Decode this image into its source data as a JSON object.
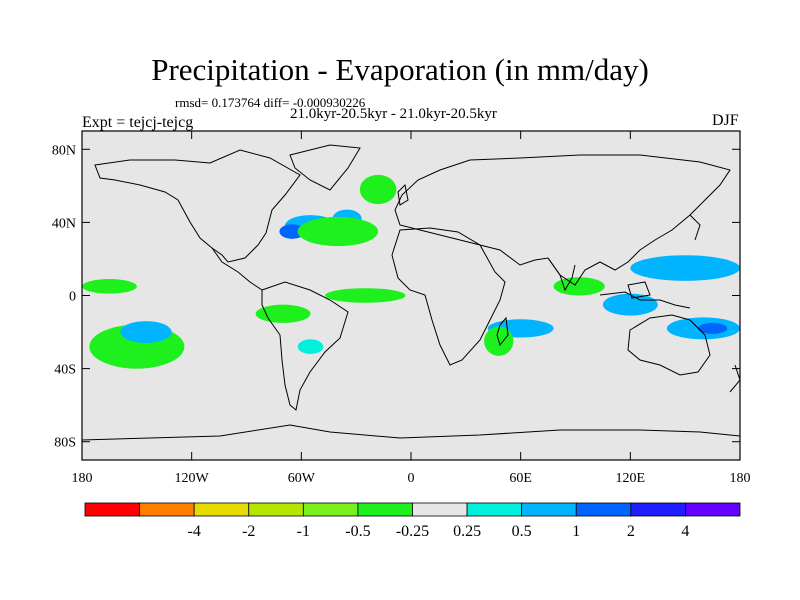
{
  "title": "Precipitation - Evaporation (in mm/day)",
  "stats_line": "rmsd= 0.173764 diff= -0.000930226",
  "subtitle": "21.0kyr-20.5kyr - 21.0kyr-20.5kyr",
  "expt_label": "Expt = tejcj-tejcg",
  "season": "DJF",
  "map": {
    "projection": "cylindrical equidistant",
    "lon_range": [
      -180,
      180
    ],
    "lat_range": [
      -90,
      90
    ],
    "ocean_land_fill": "#e6e6e6",
    "coastline_color": "#000000",
    "lat_ticks": [
      {
        "lat": 80,
        "label": "80N"
      },
      {
        "lat": 40,
        "label": "40N"
      },
      {
        "lat": 0,
        "label": "0"
      },
      {
        "lat": -40,
        "label": "40S"
      },
      {
        "lat": -80,
        "label": "80S"
      }
    ],
    "lon_ticks": [
      {
        "lon": -180,
        "label": "180"
      },
      {
        "lon": -120,
        "label": "120W"
      },
      {
        "lon": -60,
        "label": "60W"
      },
      {
        "lon": 0,
        "label": "0"
      },
      {
        "lon": 60,
        "label": "60E"
      },
      {
        "lon": 120,
        "label": "120E"
      },
      {
        "lon": 180,
        "label": "180"
      }
    ]
  },
  "colorbar": {
    "colors": [
      "#ff0000",
      "#ff8000",
      "#e6dc00",
      "#b4e600",
      "#78f01e",
      "#1ef01e",
      "#e6e6e6",
      "#00f0dc",
      "#00b4ff",
      "#0064ff",
      "#1e1eff",
      "#6400ff"
    ],
    "labels": [
      "-4",
      "-2",
      "-1",
      "-0.5",
      "-0.25",
      "0.25",
      "0.5",
      "1",
      "2",
      "4"
    ]
  },
  "anomaly_regions": [
    {
      "name": "north-atlantic-positive",
      "lon": -55,
      "lat": 38,
      "rx": 14,
      "ry": 6,
      "level": 0.5
    },
    {
      "name": "north-atlantic-strong",
      "lon": -65,
      "lat": 35,
      "rx": 7,
      "ry": 4,
      "level": 1
    },
    {
      "name": "mid-atlantic-positive",
      "lon": -35,
      "lat": 42,
      "rx": 8,
      "ry": 5,
      "level": 0.5
    },
    {
      "name": "atlantic-negative",
      "lon": -40,
      "lat": 35,
      "rx": 22,
      "ry": 8,
      "level": -0.25
    },
    {
      "name": "greenland-sea-negative",
      "lon": -18,
      "lat": 58,
      "rx": 10,
      "ry": 8,
      "level": -0.25
    },
    {
      "name": "eq-atlantic-negative",
      "lon": -25,
      "lat": 0,
      "rx": 22,
      "ry": 4,
      "level": -0.25
    },
    {
      "name": "south-pacific-negative",
      "lon": -150,
      "lat": -28,
      "rx": 26,
      "ry": 12,
      "level": -0.25
    },
    {
      "name": "south-pacific-positive",
      "lon": -145,
      "lat": -20,
      "rx": 14,
      "ry": 6,
      "level": 0.5
    },
    {
      "name": "south-america-positive",
      "lon": -55,
      "lat": -28,
      "rx": 7,
      "ry": 4,
      "level": 0.25
    },
    {
      "name": "south-america-negative",
      "lon": -70,
      "lat": -10,
      "rx": 15,
      "ry": 5,
      "level": -0.25
    },
    {
      "name": "indian-ocean-positive",
      "lon": 60,
      "lat": -18,
      "rx": 18,
      "ry": 5,
      "level": 0.5
    },
    {
      "name": "madagascar-negative",
      "lon": 48,
      "lat": -25,
      "rx": 8,
      "ry": 8,
      "level": -0.25
    },
    {
      "name": "bay-of-bengal-negative",
      "lon": 92,
      "lat": 5,
      "rx": 14,
      "ry": 5,
      "level": -0.25
    },
    {
      "name": "west-pacific-positive",
      "lon": 150,
      "lat": 15,
      "rx": 30,
      "ry": 7,
      "level": 0.5
    },
    {
      "name": "maritime-positive",
      "lon": 120,
      "lat": -5,
      "rx": 15,
      "ry": 6,
      "level": 0.5
    },
    {
      "name": "south-west-pacific-positive",
      "lon": 160,
      "lat": -18,
      "rx": 20,
      "ry": 6,
      "level": 0.5
    },
    {
      "name": "south-west-pacific-strong",
      "lon": 165,
      "lat": -18,
      "rx": 8,
      "ry": 3,
      "level": 1
    },
    {
      "name": "east-pacific-negative",
      "lon": -165,
      "lat": 5,
      "rx": 15,
      "ry": 4,
      "level": -0.25
    }
  ]
}
